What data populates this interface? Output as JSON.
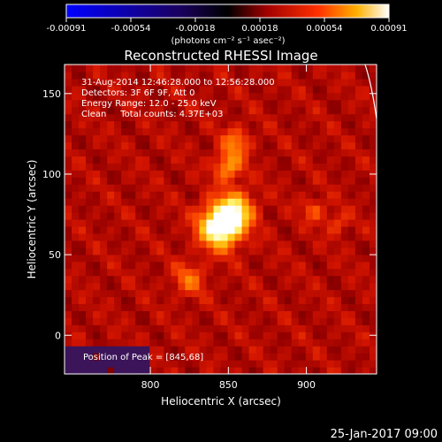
{
  "colorbar": {
    "min": -0.00091,
    "max": 0.00091,
    "tick_labels": [
      "-0.00091",
      "-0.00054",
      "-0.00018",
      "0.00018",
      "0.00054",
      "0.00091"
    ],
    "unit_label": "(photons cm⁻² s⁻¹ asec⁻²)"
  },
  "chart_data": {
    "type": "heatmap",
    "title": "Reconstructed RHESSI Image",
    "xlabel": "Heliocentric X (arcsec)",
    "ylabel": "Heliocentric Y (arcsec)",
    "xlim": [
      745,
      945
    ],
    "ylim": [
      -24,
      168
    ],
    "x_ticks": [
      800,
      850,
      900
    ],
    "y_ticks": [
      0,
      50,
      100,
      150
    ],
    "annotations": [
      "31-Aug-2014 12:46:28.000 to 12:56:28.000",
      "Detectors: 3F 6F 9F, Att 0",
      "Energy Range: 12.0 - 25.0 keV",
      "Clean     Total counts: 4.37E+03"
    ],
    "peak_label": "Position of Peak = [845,68]",
    "peak": [
      845,
      68
    ],
    "sources": [
      {
        "x": 845,
        "y": 68,
        "intensity": 1.0,
        "sigma": 9
      },
      {
        "x": 855,
        "y": 78,
        "intensity": 0.55,
        "sigma": 8
      },
      {
        "x": 850,
        "y": 105,
        "intensity": 0.45,
        "sigma": 6
      },
      {
        "x": 855,
        "y": 120,
        "intensity": 0.35,
        "sigma": 6
      },
      {
        "x": 825,
        "y": 35,
        "intensity": 0.3,
        "sigma": 7
      },
      {
        "x": 905,
        "y": 78,
        "intensity": 0.25,
        "sigma": 5
      },
      {
        "x": 920,
        "y": 70,
        "intensity": 0.2,
        "sigma": 5
      }
    ]
  },
  "footer": {
    "date": "25-Jan-2017 09:00"
  }
}
